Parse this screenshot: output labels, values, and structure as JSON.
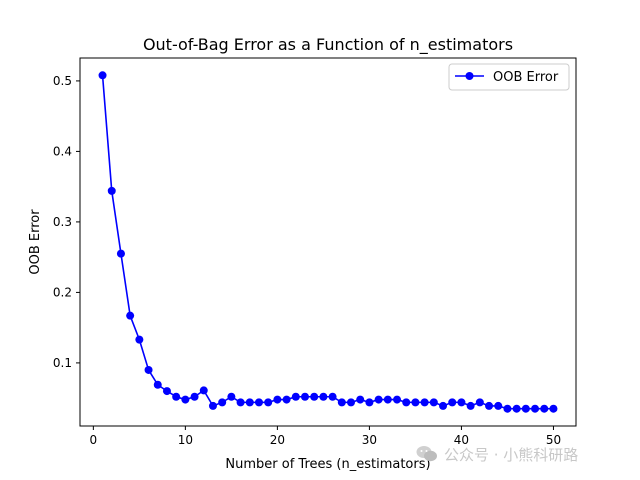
{
  "watermark": {
    "text": "公众号 · 小熊科研路",
    "icon": "wechat-icon"
  },
  "chart_data": {
    "type": "line",
    "title": "Out-of-Bag Error as a Function of n_estimators",
    "xlabel": "Number of Trees (n_estimators)",
    "ylabel": "OOB Error",
    "xlim": [
      -1.45,
      52.45
    ],
    "ylim": [
      0.0105,
      0.5325
    ],
    "xticks": [
      0,
      10,
      20,
      30,
      40,
      50
    ],
    "xtick_labels": [
      "0",
      "10",
      "20",
      "30",
      "40",
      "50"
    ],
    "yticks": [
      0.1,
      0.2,
      0.3,
      0.4,
      0.5
    ],
    "ytick_labels": [
      "0.1",
      "0.2",
      "0.3",
      "0.4",
      "0.5"
    ],
    "grid": false,
    "legend_position": "upper right",
    "colors": {
      "series": "#0000ff",
      "axes": "#000000"
    },
    "series": [
      {
        "name": "OOB Error",
        "marker": "circle",
        "x": [
          1,
          2,
          3,
          4,
          5,
          6,
          7,
          8,
          9,
          10,
          11,
          12,
          13,
          14,
          15,
          16,
          17,
          18,
          19,
          20,
          21,
          22,
          23,
          24,
          25,
          26,
          27,
          28,
          29,
          30,
          31,
          32,
          33,
          34,
          35,
          36,
          37,
          38,
          39,
          40,
          41,
          42,
          43,
          44,
          45,
          46,
          47,
          48,
          49,
          50
        ],
        "y": [
          0.508,
          0.344,
          0.255,
          0.167,
          0.133,
          0.09,
          0.069,
          0.06,
          0.052,
          0.048,
          0.052,
          0.061,
          0.039,
          0.044,
          0.052,
          0.044,
          0.044,
          0.044,
          0.044,
          0.048,
          0.048,
          0.052,
          0.052,
          0.052,
          0.052,
          0.052,
          0.044,
          0.044,
          0.048,
          0.044,
          0.048,
          0.048,
          0.048,
          0.044,
          0.044,
          0.044,
          0.044,
          0.039,
          0.044,
          0.044,
          0.039,
          0.044,
          0.039,
          0.039,
          0.035,
          0.035,
          0.035,
          0.035,
          0.035,
          0.035
        ]
      }
    ]
  }
}
